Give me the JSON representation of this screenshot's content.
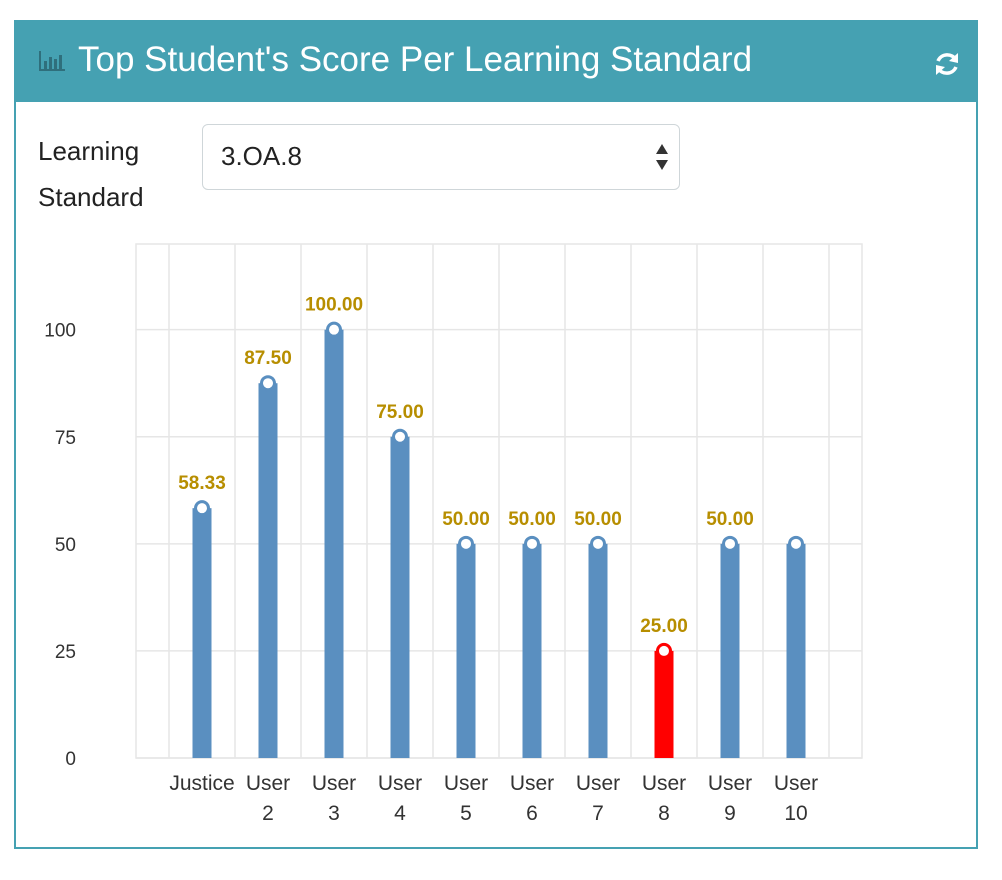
{
  "panel": {
    "title": "Top Student's Score Per Learning Standard",
    "header_icon": "bar-chart-icon",
    "refresh_icon": "refresh-icon"
  },
  "filter": {
    "label": "Learning Standard",
    "selected": "3.OA.8"
  },
  "colors": {
    "header": "#45a1b2",
    "bar": "#5a8fc0",
    "bar_highlight": "#ff0000",
    "data_label": "#b78e00",
    "grid": "#e6e6e6"
  },
  "chart_data": {
    "type": "bar",
    "title": "",
    "xlabel": "",
    "ylabel": "",
    "categories": [
      [
        "Justice"
      ],
      [
        "User",
        "2"
      ],
      [
        "User",
        "3"
      ],
      [
        "User",
        "4"
      ],
      [
        "User",
        "5"
      ],
      [
        "User",
        "6"
      ],
      [
        "User",
        "7"
      ],
      [
        "User",
        "8"
      ],
      [
        "User",
        "9"
      ],
      [
        "User",
        "10"
      ]
    ],
    "values": [
      58.33,
      87.5,
      100,
      75,
      50,
      50,
      50,
      25,
      50,
      50
    ],
    "data_labels": [
      "58.33",
      "87.50",
      "100.00",
      "75.00",
      "50.00",
      "50.00",
      "50.00",
      "25.00",
      "50.00",
      ""
    ],
    "highlight_index": 7,
    "ylim": [
      0,
      120
    ],
    "yticks": [
      0,
      25,
      50,
      75,
      100
    ],
    "grid": true,
    "legend": "none"
  }
}
